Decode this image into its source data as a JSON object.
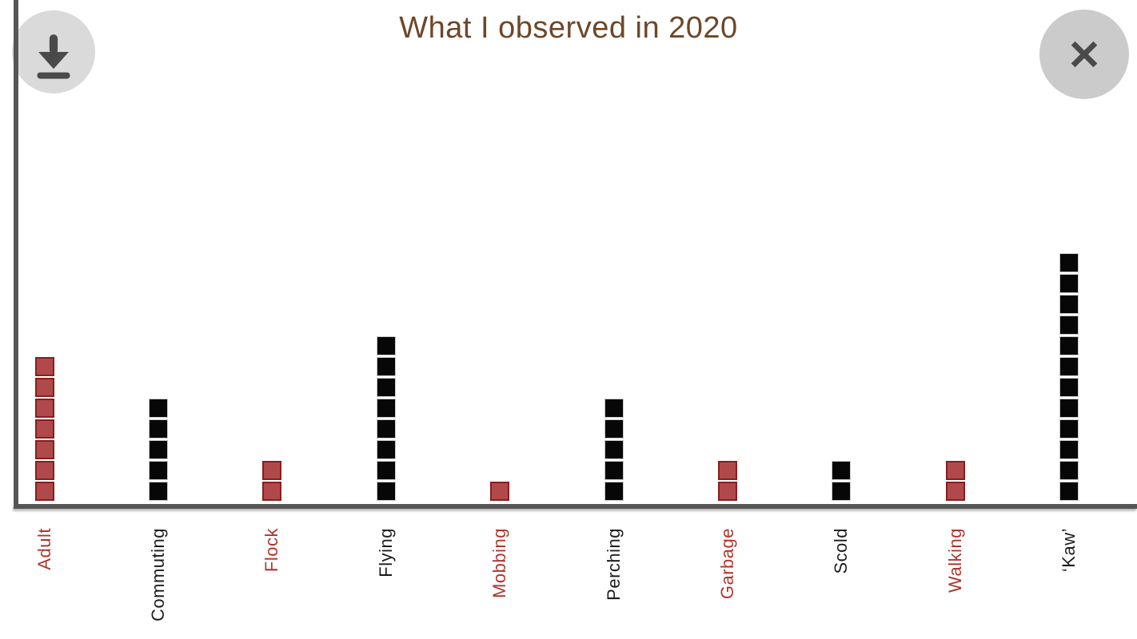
{
  "chart_data": {
    "type": "bar",
    "subtype": "pictograph-stacked-unit-squares",
    "title": "What I observed in 2020",
    "categories": [
      "Adult",
      "Commuting",
      "Flock",
      "Flying",
      "Mobbing",
      "Perching",
      "Garbage",
      "Scold",
      "Walking",
      "‘Kaw’"
    ],
    "values": [
      7,
      5,
      2,
      8,
      1,
      5,
      2,
      2,
      2,
      12
    ],
    "colors": [
      "red",
      "black",
      "red",
      "black",
      "red",
      "black",
      "red",
      "black",
      "red",
      "black"
    ],
    "xlabel": "",
    "ylabel": "",
    "ylim": [
      0,
      12
    ],
    "grid": false,
    "legend": false,
    "tick_label_rotation": "vertical-bottom-to-top"
  },
  "buttons": {
    "download_icon": "download-icon",
    "close_icon": "close-icon"
  },
  "colors": {
    "title_text": "#6d4728",
    "axis": "#565656",
    "red_fill": "#b04a4a",
    "red_border": "#8b1d1d",
    "red_label": "#b0352c",
    "black_fill": "#070707",
    "black_border": "#c9c9c9",
    "black_label": "#1c1c1c",
    "download_bg": "#dadada",
    "close_bg": "#cbcbcb",
    "icon": "#4a4a4a"
  }
}
